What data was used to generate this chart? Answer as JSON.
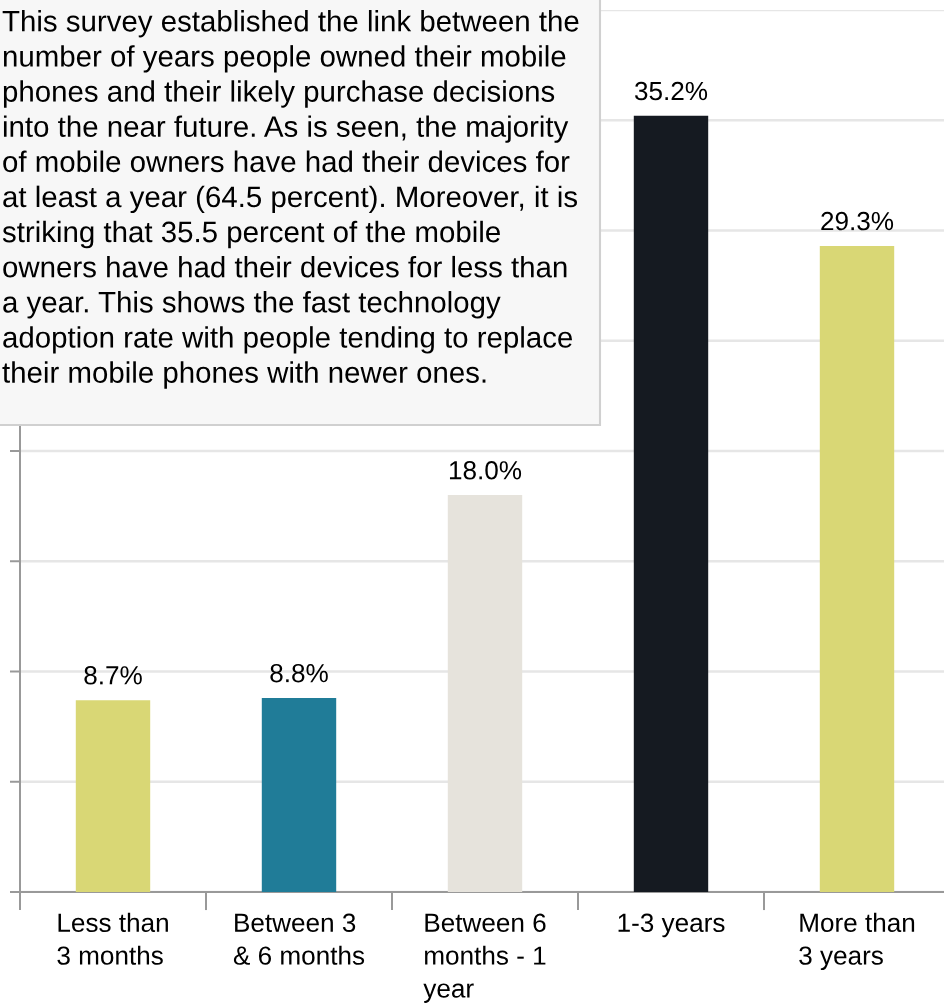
{
  "chart_data": {
    "type": "bar",
    "categories": [
      "Less than\n3 months",
      "Between 3\n& 6 months",
      "Between 6\nmonths - 1\nyear",
      "1-3 years",
      "More than\n3 years"
    ],
    "values": [
      8.7,
      8.8,
      18.0,
      35.2,
      29.3
    ],
    "colors": [
      "#d9d775",
      "#207c98",
      "#e6e3dc",
      "#151a21",
      "#d9d775"
    ],
    "value_labels": [
      "8.7%",
      "8.8%",
      "18.0%",
      "35.2%",
      "29.3%"
    ],
    "ylim": [
      0,
      40
    ],
    "yticks": [
      {
        "value": 0,
        "label": null
      },
      {
        "value": 5,
        "label": null
      },
      {
        "value": 10,
        "label": null
      },
      {
        "value": 15,
        "label": null
      },
      {
        "value": 20,
        "label": null
      },
      {
        "value": 25,
        "label": null
      },
      {
        "value": 30,
        "label": null
      },
      {
        "value": 35,
        "label": null
      },
      {
        "value": 40,
        "label": null
      }
    ],
    "tick_labels": "x",
    "grid": "y",
    "annotations": [
      "This survey established the link between the\nnumber of years people owned their mobile\nphones and their likely purchase decisions\ninto the near future. As is seen, the majority\nof mobile owners have had their devices for\nat least a year (64.5 percent). Moreover, it is\nstriking that 35.5 percent of the mobile\nowners have had their devices for less than\na year. This shows the fast technology\nadoption rate with people tending to replace\ntheir mobile phones with newer ones."
    ]
  }
}
